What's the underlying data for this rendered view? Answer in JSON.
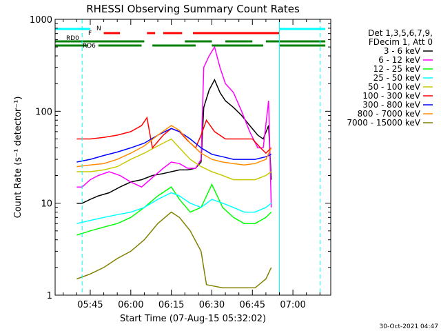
{
  "chart_data": {
    "type": "line",
    "title": "RHESSI Observing Summary Count Rates",
    "xlabel": "Start Time (07-Aug-15 05:32:02)",
    "ylabel": "Count Rate (s⁻¹ detector⁻¹)",
    "y_scale": "log",
    "ylim": [
      1,
      1000
    ],
    "y_ticks": [
      {
        "value": 1,
        "label": "1"
      },
      {
        "value": 10,
        "label": "10"
      },
      {
        "value": 100,
        "label": "100"
      },
      {
        "value": 1000,
        "label": "1000"
      }
    ],
    "x_ticks": [
      {
        "value": "05:45",
        "label": "05:45"
      },
      {
        "value": "06:00",
        "label": "06:00"
      },
      {
        "value": "06:15",
        "label": "06:15"
      },
      {
        "value": "06:30",
        "label": "06:30"
      },
      {
        "value": "06:45",
        "label": "06:45"
      },
      {
        "value": "07:00",
        "label": "07:00"
      }
    ],
    "xlim": [
      "05:32",
      "07:14"
    ],
    "legend": {
      "placement": "right",
      "header": [
        "Det 1,3,5,6,7,9,",
        "FDecim 1, Att 0"
      ]
    },
    "series": [
      {
        "name": "3 - 6 keV",
        "color": "#000000",
        "x": [
          "05:40",
          "05:42",
          "05:45",
          "05:48",
          "05:52",
          "05:56",
          "06:00",
          "06:04",
          "06:08",
          "06:12",
          "06:15",
          "06:18",
          "06:21",
          "06:24",
          "06:26",
          "06:27",
          "06:29",
          "06:31",
          "06:33",
          "06:35",
          "06:38",
          "06:41",
          "06:44",
          "06:47",
          "06:49",
          "06:51",
          "06:52"
        ],
        "values": [
          10,
          10,
          11,
          12,
          13,
          15,
          17,
          18,
          20,
          21,
          22,
          23,
          23,
          24,
          28,
          110,
          170,
          220,
          160,
          130,
          110,
          90,
          70,
          55,
          50,
          70,
          18
        ]
      },
      {
        "name": "6 - 12 keV",
        "color": "#ff00ff",
        "x": [
          "05:40",
          "05:42",
          "05:45",
          "05:48",
          "05:52",
          "05:56",
          "06:00",
          "06:04",
          "06:08",
          "06:12",
          "06:15",
          "06:18",
          "06:21",
          "06:24",
          "06:26",
          "06:27",
          "06:29",
          "06:31",
          "06:33",
          "06:35",
          "06:38",
          "06:41",
          "06:44",
          "06:47",
          "06:49",
          "06:51",
          "06:52"
        ],
        "values": [
          15,
          15,
          18,
          20,
          22,
          20,
          17,
          15,
          19,
          24,
          28,
          27,
          24,
          24,
          30,
          300,
          400,
          500,
          300,
          200,
          160,
          100,
          60,
          40,
          40,
          130,
          9
        ]
      },
      {
        "name": "12 - 25 keV",
        "color": "#00ff00",
        "x": [
          "05:40",
          "05:45",
          "05:50",
          "05:55",
          "06:00",
          "06:05",
          "06:10",
          "06:15",
          "06:18",
          "06:22",
          "06:26",
          "06:30",
          "06:34",
          "06:38",
          "06:42",
          "06:46",
          "06:50",
          "06:52"
        ],
        "values": [
          4.5,
          5,
          5.5,
          6,
          7,
          9,
          12,
          15,
          11,
          8,
          9,
          16,
          9,
          7,
          6,
          6,
          7,
          8
        ]
      },
      {
        "name": "25 - 50 keV",
        "color": "#00ffff",
        "x": [
          "05:40",
          "05:45",
          "05:50",
          "05:55",
          "06:00",
          "06:05",
          "06:10",
          "06:15",
          "06:18",
          "06:22",
          "06:26",
          "06:30",
          "06:34",
          "06:38",
          "06:42",
          "06:46",
          "06:50",
          "06:52"
        ],
        "values": [
          6,
          6.5,
          7,
          7.5,
          8,
          9,
          11,
          13,
          12,
          10,
          9,
          11,
          10,
          9,
          8,
          8,
          9,
          10
        ]
      },
      {
        "name": "50 - 100 keV",
        "color": "#c8c800",
        "x": [
          "05:40",
          "05:45",
          "05:50",
          "05:55",
          "06:00",
          "06:05",
          "06:10",
          "06:15",
          "06:18",
          "06:22",
          "06:26",
          "06:30",
          "06:34",
          "06:38",
          "06:42",
          "06:46",
          "06:50",
          "06:52"
        ],
        "values": [
          22,
          22,
          23,
          25,
          30,
          35,
          42,
          50,
          40,
          30,
          25,
          22,
          20,
          18,
          18,
          18,
          20,
          22
        ]
      },
      {
        "name": "100 - 300 keV",
        "color": "#ff0000",
        "x": [
          "05:40",
          "05:45",
          "05:50",
          "05:55",
          "06:00",
          "06:04",
          "06:06",
          "06:08",
          "06:12",
          "06:15",
          "06:18",
          "06:21",
          "06:24",
          "06:26",
          "06:28",
          "06:31",
          "06:35",
          "06:40",
          "06:45",
          "06:48",
          "06:50",
          "06:52"
        ],
        "values": [
          50,
          50,
          52,
          55,
          60,
          70,
          85,
          40,
          55,
          65,
          60,
          48,
          40,
          55,
          80,
          60,
          50,
          50,
          50,
          40,
          35,
          40
        ]
      },
      {
        "name": "300 - 800 keV",
        "color": "#0000ff",
        "x": [
          "05:40",
          "05:45",
          "05:50",
          "05:55",
          "06:00",
          "06:05",
          "06:10",
          "06:15",
          "06:18",
          "06:22",
          "06:26",
          "06:30",
          "06:34",
          "06:38",
          "06:42",
          "06:46",
          "06:50",
          "06:52"
        ],
        "values": [
          28,
          30,
          33,
          36,
          40,
          45,
          55,
          65,
          60,
          50,
          40,
          34,
          32,
          30,
          30,
          30,
          32,
          34
        ]
      },
      {
        "name": "800 - 7000 keV",
        "color": "#ff8c00",
        "x": [
          "05:40",
          "05:45",
          "05:50",
          "05:55",
          "06:00",
          "06:05",
          "06:10",
          "06:15",
          "06:18",
          "06:22",
          "06:26",
          "06:30",
          "06:34",
          "06:38",
          "06:42",
          "06:46",
          "06:50",
          "06:52"
        ],
        "values": [
          25,
          26,
          27,
          30,
          35,
          42,
          55,
          70,
          62,
          45,
          35,
          30,
          28,
          27,
          26,
          27,
          30,
          40
        ]
      },
      {
        "name": "7000 - 15000 keV",
        "color": "#808000",
        "x": [
          "05:40",
          "05:45",
          "05:50",
          "05:55",
          "06:00",
          "06:05",
          "06:10",
          "06:15",
          "06:18",
          "06:22",
          "06:26",
          "06:28",
          "06:34",
          "06:40",
          "06:46",
          "06:50",
          "06:52"
        ],
        "values": [
          1.5,
          1.7,
          2,
          2.5,
          3,
          4,
          6,
          8,
          7,
          5,
          3,
          1.3,
          1.2,
          1.2,
          1.2,
          1.5,
          2
        ]
      }
    ],
    "flag_bars": [
      {
        "name": "N",
        "color": "#00ffff",
        "segments": [
          [
            "05:32",
            "05:45"
          ],
          [
            "06:55",
            "07:12"
          ]
        ]
      },
      {
        "name": "F",
        "color": "#ff0000",
        "segments": [
          [
            "05:50",
            "05:56"
          ],
          [
            "06:06",
            "06:09"
          ],
          [
            "06:12",
            "06:19"
          ],
          [
            "06:23",
            "06:55"
          ]
        ]
      },
      {
        "name": "RD0",
        "color": "#008000",
        "segments": [
          [
            "05:32",
            "06:05"
          ],
          [
            "06:20",
            "06:30"
          ],
          [
            "06:35",
            "06:45"
          ],
          [
            "06:50",
            "07:12"
          ]
        ]
      },
      {
        "name": "RD6",
        "color": "#008000",
        "segments": [
          [
            "05:32",
            "05:44"
          ],
          [
            "05:48",
            "06:04"
          ],
          [
            "06:08",
            "06:24"
          ],
          [
            "06:30",
            "06:49"
          ],
          [
            "06:55",
            "07:12"
          ]
        ]
      }
    ],
    "vlines": [
      {
        "x": "05:32",
        "style": "solid",
        "color": "#00ffff"
      },
      {
        "x": "05:42",
        "style": "dashed",
        "color": "#00ffff"
      },
      {
        "x": "06:55",
        "style": "solid",
        "color": "#00ffff"
      },
      {
        "x": "07:10",
        "style": "dashed",
        "color": "#00ffff"
      }
    ],
    "grid": false
  },
  "footer": {
    "timestamp": "30-Oct-2021 04:47"
  }
}
